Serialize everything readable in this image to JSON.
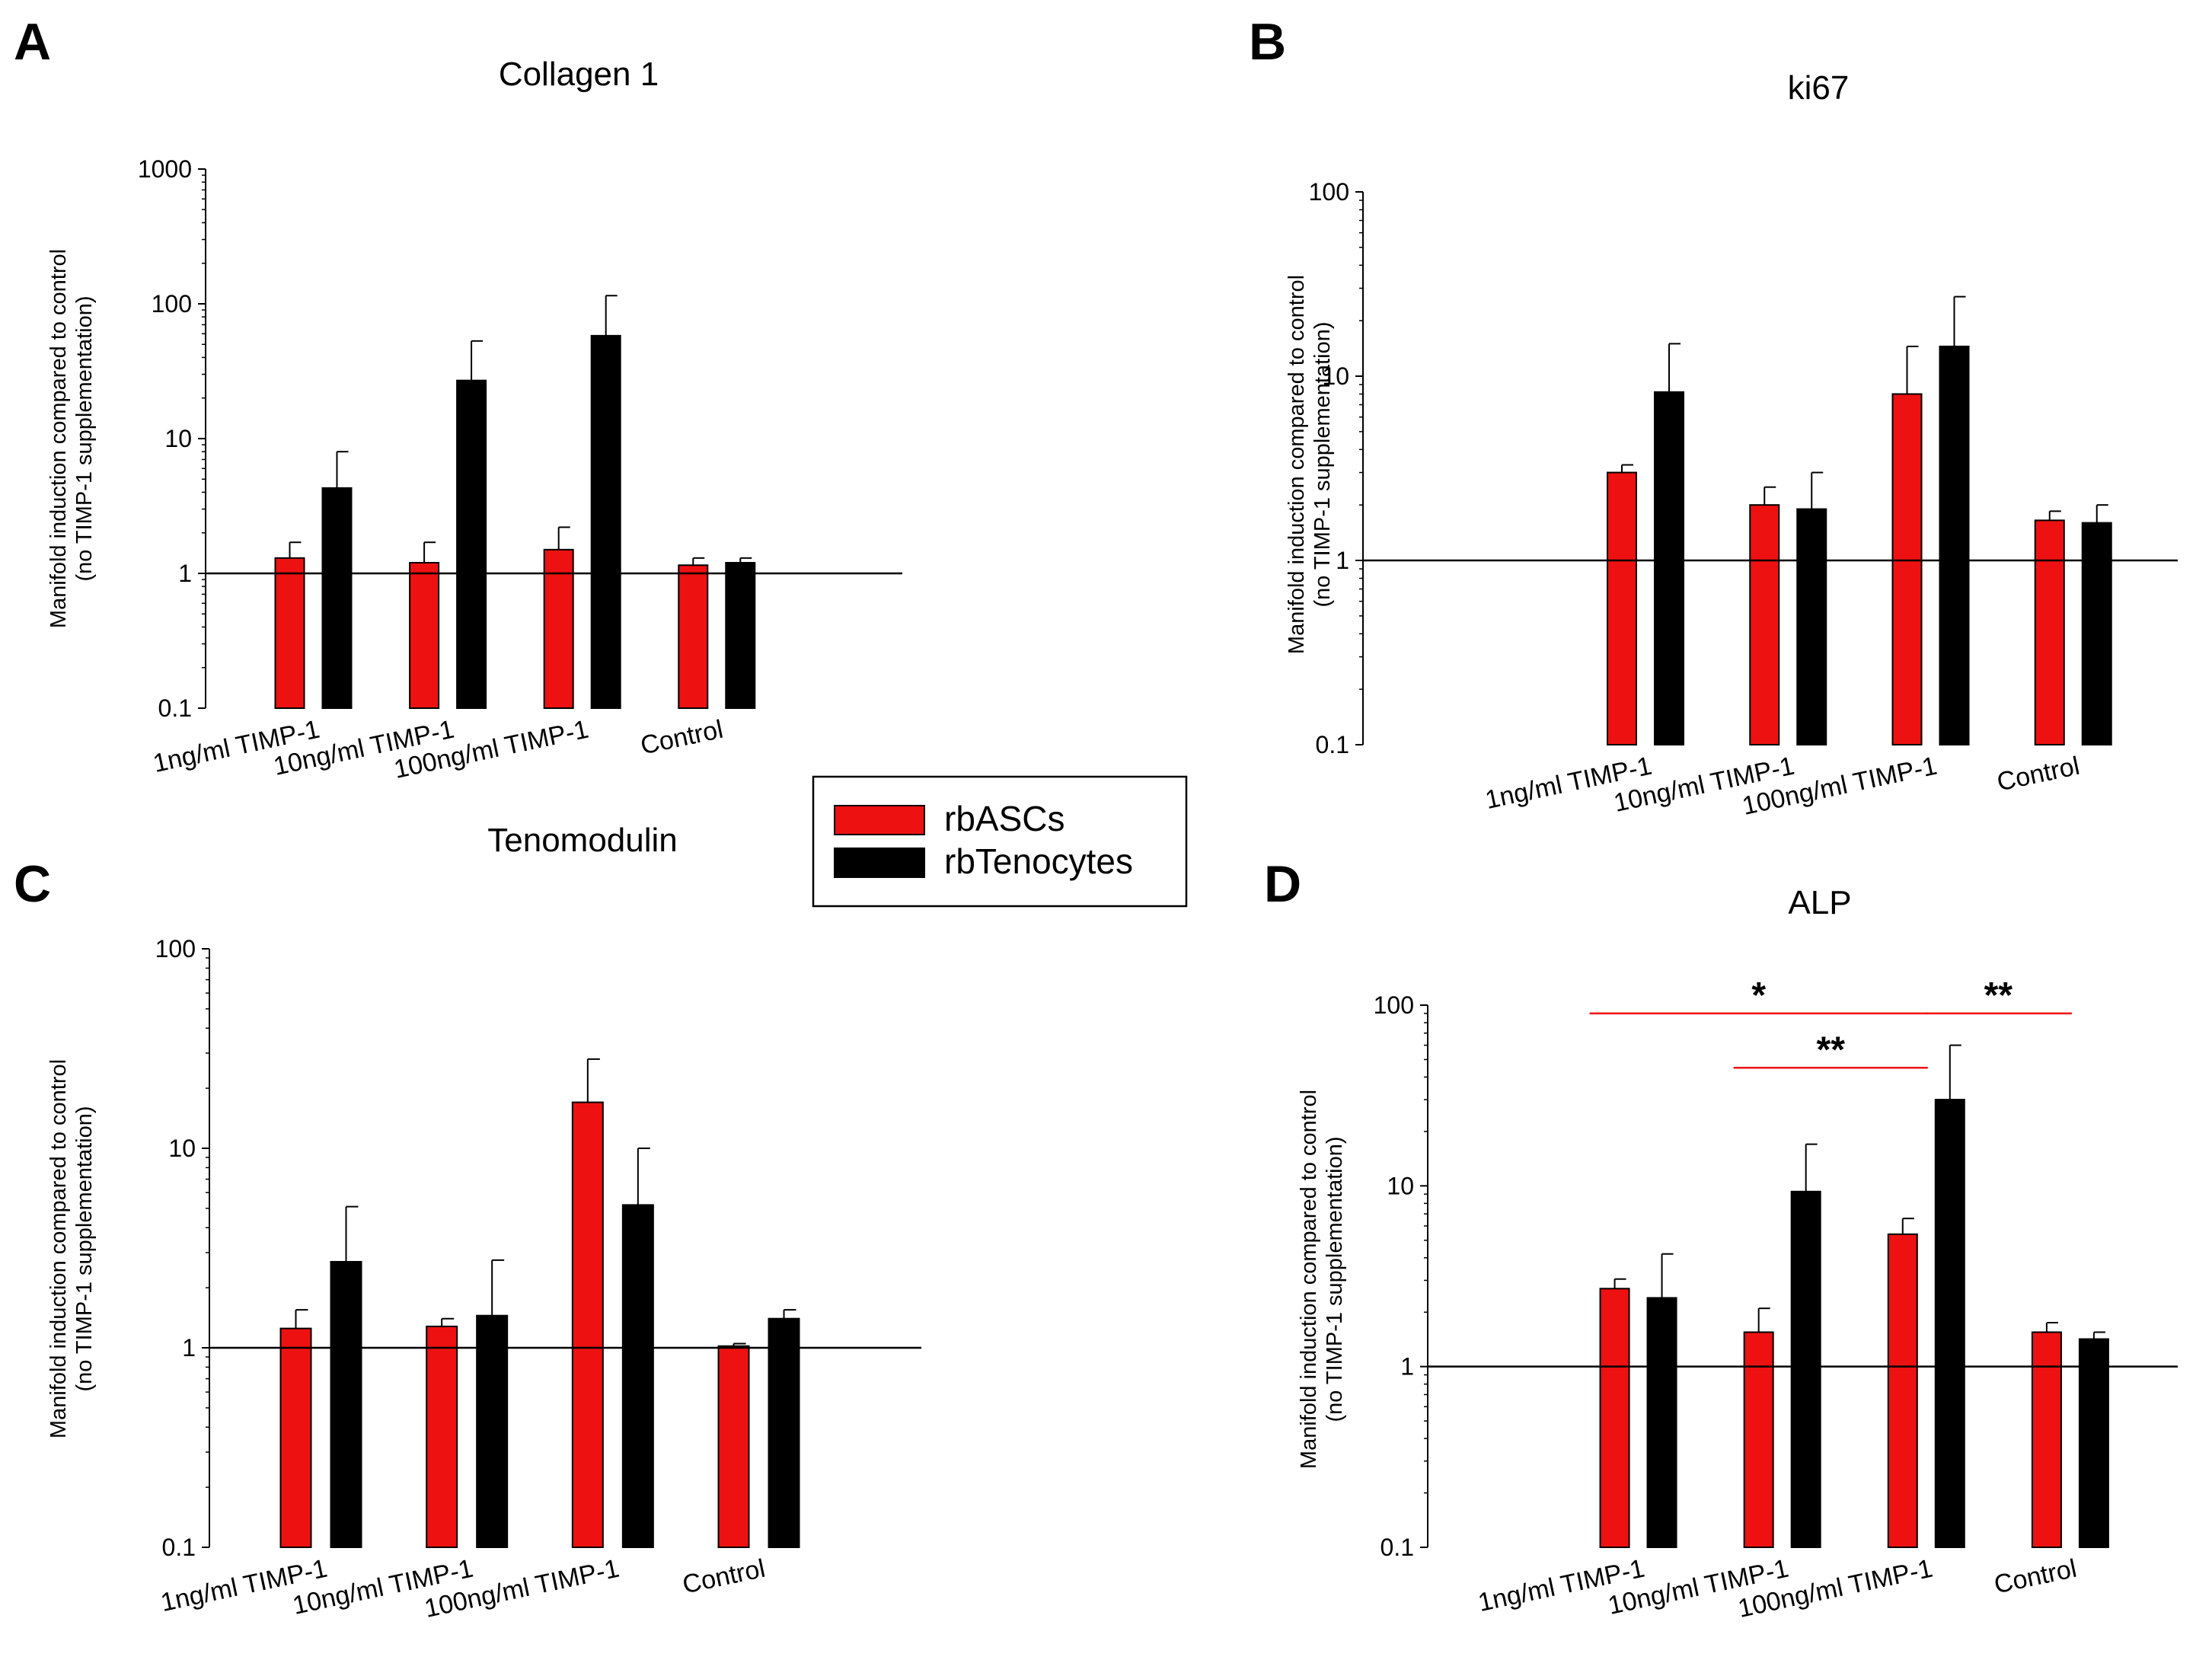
{
  "figure": {
    "legend": [
      {
        "label": "rbASCs",
        "color": "#ee1111"
      },
      {
        "label": "rbTenocytes",
        "color": "#000000"
      }
    ]
  },
  "chart_data": [
    {
      "panel": "A",
      "type": "bar",
      "title": "Collagen 1",
      "ylabel": [
        "Manifold induction compared to control",
        "(no TIMP-1 supplementation)"
      ],
      "yscale": "log",
      "ylim": [
        0.1,
        1000
      ],
      "yticks": [
        "0.1",
        "1",
        "10",
        "100",
        "1000"
      ],
      "reference_line": 1,
      "categories": [
        "1ng/ml TIMP-1",
        "10ng/ml TIMP-1",
        "100ng/ml TIMP-1",
        "Control"
      ],
      "series": [
        {
          "name": "rbASCs",
          "color": "#ee1111",
          "values": [
            1.3,
            1.2,
            1.5,
            1.15
          ],
          "error_upper": [
            1.7,
            1.7,
            2.2,
            1.3
          ]
        },
        {
          "name": "rbTenocytes",
          "color": "#000000",
          "values": [
            4.3,
            27,
            58,
            1.2
          ],
          "error_upper": [
            8.0,
            53,
            115,
            1.3
          ]
        }
      ]
    },
    {
      "panel": "B",
      "type": "bar",
      "title": "ki67",
      "ylabel": [
        "Manifold induction compared to control",
        "(no TIMP-1 supplementation)"
      ],
      "yscale": "log",
      "ylim": [
        0.1,
        100
      ],
      "yticks": [
        "0.1",
        "1",
        "10",
        "100"
      ],
      "reference_line": 1,
      "categories": [
        "1ng/ml TIMP-1",
        "10ng/ml TIMP-1",
        "100ng/ml TIMP-1",
        "Control"
      ],
      "series": [
        {
          "name": "rbASCs",
          "color": "#ee1111",
          "values": [
            3.0,
            2.0,
            8.0,
            1.65
          ],
          "error_upper": [
            3.3,
            2.5,
            14.5,
            1.85
          ]
        },
        {
          "name": "rbTenocytes",
          "color": "#000000",
          "values": [
            8.2,
            1.9,
            14.5,
            1.6
          ],
          "error_upper": [
            15,
            3.0,
            27,
            2.0
          ]
        }
      ]
    },
    {
      "panel": "C",
      "type": "bar",
      "title": "Tenomodulin",
      "ylabel": [
        "Manifold induction compared to control",
        "(no TIMP-1 supplementation)"
      ],
      "yscale": "log",
      "ylim": [
        0.1,
        100
      ],
      "yticks": [
        "0.1",
        "1",
        "10",
        "100"
      ],
      "reference_line": 1,
      "categories": [
        "1ng/ml TIMP-1",
        "10ng/ml TIMP-1",
        "100ng/ml TIMP-1",
        "Control"
      ],
      "series": [
        {
          "name": "rbASCs",
          "color": "#ee1111",
          "values": [
            1.25,
            1.28,
            17,
            1.02
          ],
          "error_upper": [
            1.55,
            1.4,
            28,
            1.05
          ]
        },
        {
          "name": "rbTenocytes",
          "color": "#000000",
          "values": [
            2.7,
            1.45,
            5.2,
            1.4
          ],
          "error_upper": [
            5.1,
            2.75,
            10,
            1.55
          ]
        }
      ]
    },
    {
      "panel": "D",
      "type": "bar",
      "title": "ALP",
      "ylabel": [
        "Manifold induction compared to control",
        "(no TIMP-1 supplementation)"
      ],
      "yscale": "log",
      "ylim": [
        0.1,
        100
      ],
      "yticks": [
        "0.1",
        "1",
        "10",
        "100"
      ],
      "reference_line": 1,
      "categories": [
        "1ng/ml TIMP-1",
        "10ng/ml TIMP-1",
        "100ng/ml TIMP-1",
        "Control"
      ],
      "series": [
        {
          "name": "rbASCs",
          "color": "#ee1111",
          "values": [
            2.7,
            1.55,
            5.4,
            1.55
          ],
          "error_upper": [
            3.05,
            2.1,
            6.6,
            1.75
          ]
        },
        {
          "name": "rbTenocytes",
          "color": "#000000",
          "values": [
            2.4,
            9.3,
            30,
            1.42
          ],
          "error_upper": [
            4.2,
            17,
            60,
            1.55
          ]
        }
      ],
      "significance": [
        {
          "label": "*",
          "from_category": 0,
          "from_series": 0,
          "to_category": 2,
          "to_series": 0,
          "level": 90
        },
        {
          "label": "**",
          "from_category": 1,
          "from_series": 0,
          "to_category": 2,
          "to_series": 0,
          "level": 45
        },
        {
          "label": "**",
          "from_category": 2,
          "from_series": 1,
          "to_category": 3,
          "to_series": 0,
          "level": 90
        }
      ]
    }
  ]
}
